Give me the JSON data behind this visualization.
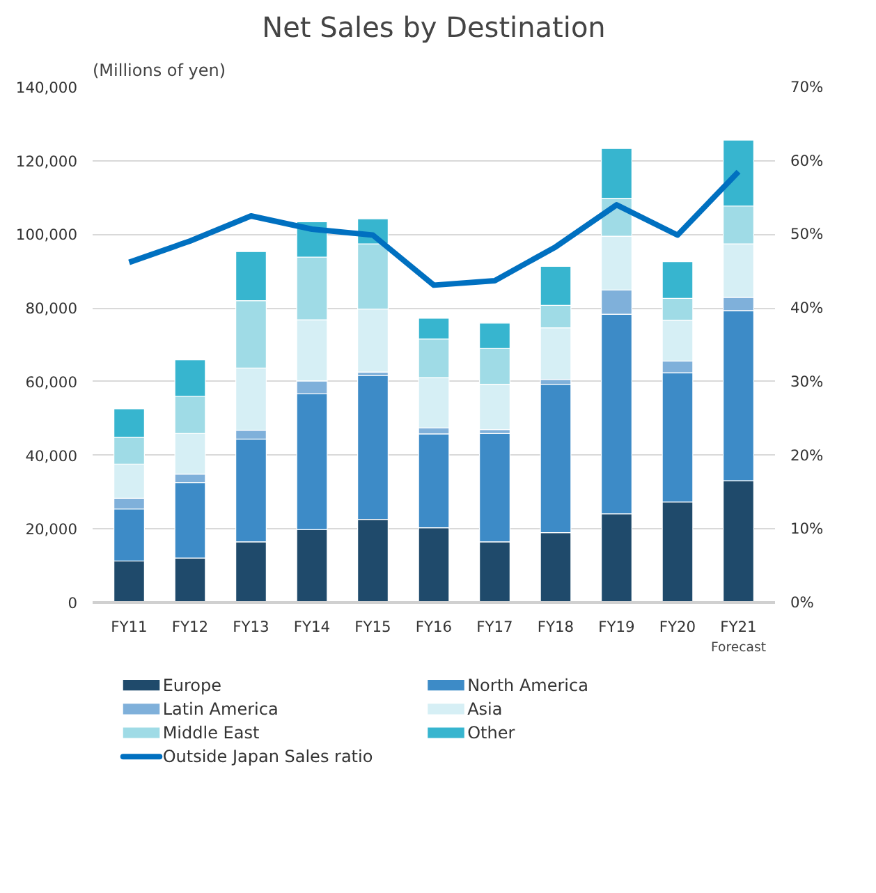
{
  "chart_data": {
    "type": "bar",
    "stacked": true,
    "title": "Net Sales by Destination",
    "ylabel": "(Millions of yen)",
    "categories": [
      "FY11",
      "FY12",
      "FY13",
      "FY14",
      "FY15",
      "FY16",
      "FY17",
      "FY18",
      "FY19",
      "FY20",
      "FY21"
    ],
    "series": [
      {
        "name": "Europe",
        "color": "#1f4a6b",
        "values": [
          11300,
          12100,
          16500,
          19800,
          22600,
          20300,
          16500,
          19000,
          24100,
          27300,
          33100
        ]
      },
      {
        "name": "North America",
        "color": "#3d8bc7",
        "values": [
          14100,
          20500,
          27900,
          36900,
          39000,
          25500,
          29400,
          40300,
          54200,
          35100,
          46200
        ]
      },
      {
        "name": "Latin America",
        "color": "#7fb0da",
        "values": [
          2900,
          2300,
          2400,
          3500,
          1000,
          1600,
          1100,
          1300,
          6600,
          3200,
          3600
        ]
      },
      {
        "name": "Asia",
        "color": "#d6eff5",
        "values": [
          9300,
          11000,
          16900,
          16600,
          17100,
          13700,
          12300,
          14000,
          14600,
          11100,
          14500
        ]
      },
      {
        "name": "Middle East",
        "color": "#9fdbe6",
        "values": [
          7300,
          10100,
          18300,
          17000,
          17700,
          10500,
          9700,
          6100,
          10300,
          5900,
          10300
        ]
      },
      {
        "name": "Other",
        "color": "#37b5cf",
        "values": [
          7700,
          9900,
          13300,
          9600,
          6800,
          5600,
          6900,
          10600,
          13500,
          10000,
          17900
        ]
      },
      {
        "name": "Outside Japan Sales ratio",
        "type": "line",
        "axis": "y2",
        "color": "#0070c0",
        "values": [
          46.2,
          49.1,
          52.5,
          50.7,
          49.9,
          43.1,
          43.7,
          48.3,
          54.0,
          49.9,
          58.5
        ]
      }
    ],
    "ylim": [
      0,
      140000
    ],
    "yticks": [
      {
        "value": 0,
        "label": "0"
      },
      {
        "value": 20000,
        "label": "20,000"
      },
      {
        "value": 40000,
        "label": "40,000"
      },
      {
        "value": 60000,
        "label": "60,000"
      },
      {
        "value": 80000,
        "label": "80,000"
      },
      {
        "value": 100000,
        "label": "100,000"
      },
      {
        "value": 120000,
        "label": "120,000"
      },
      {
        "value": 140000,
        "label": "140,000"
      }
    ],
    "y2lim": [
      0,
      70
    ],
    "y2ticks": [
      {
        "value": 0,
        "label": "0%"
      },
      {
        "value": 10,
        "label": "10%"
      },
      {
        "value": 20,
        "label": "20%"
      },
      {
        "value": 30,
        "label": "30%"
      },
      {
        "value": 40,
        "label": "40%"
      },
      {
        "value": 50,
        "label": "50%"
      },
      {
        "value": 60,
        "label": "60%"
      },
      {
        "value": 70,
        "label": "70%"
      }
    ],
    "annotations": [
      "Forecast"
    ],
    "grid": "y",
    "legend": "bottom",
    "marker": "none",
    "line_style": "solid"
  }
}
